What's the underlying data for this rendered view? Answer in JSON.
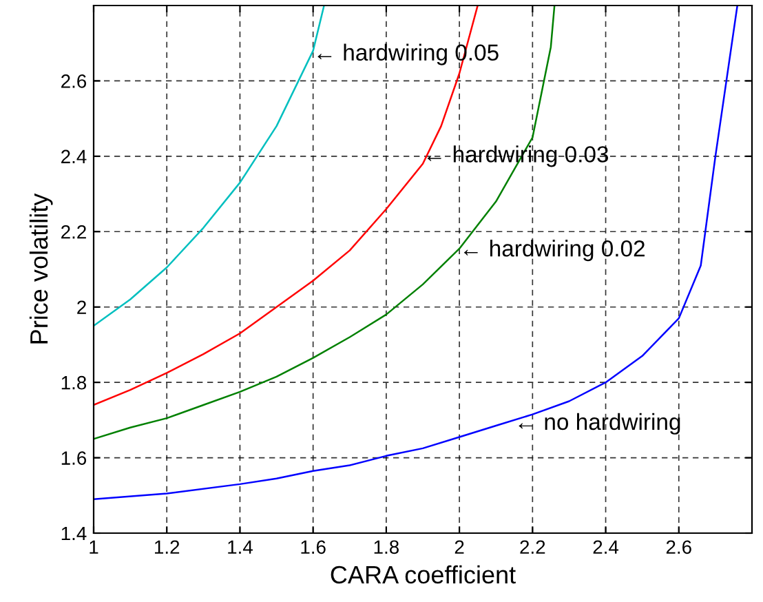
{
  "chart_data": {
    "type": "line",
    "xlabel": "CARA coefficient",
    "ylabel": "Price volatility",
    "xlim": [
      1,
      2.8
    ],
    "ylim": [
      1.4,
      2.8
    ],
    "xticks": [
      1,
      1.2,
      1.4,
      1.6,
      1.8,
      2,
      2.2,
      2.4,
      2.6
    ],
    "yticks": [
      1.4,
      1.6,
      1.8,
      2,
      2.2,
      2.4,
      2.6
    ],
    "grid": true,
    "line_style": "solid",
    "marker": "none",
    "series": [
      {
        "color": "#00bfbf",
        "x": [
          1,
          1.1,
          1.2,
          1.3,
          1.4,
          1.5,
          1.6,
          1.63
        ],
        "values": [
          1.95,
          2.02,
          2.105,
          2.21,
          2.33,
          2.48,
          2.68,
          2.8
        ]
      },
      {
        "color": "#ff0000",
        "x": [
          1,
          1.1,
          1.2,
          1.3,
          1.4,
          1.5,
          1.6,
          1.7,
          1.8,
          1.9,
          1.95,
          2.0,
          2.05
        ],
        "values": [
          1.74,
          1.78,
          1.825,
          1.875,
          1.93,
          2.0,
          2.07,
          2.15,
          2.26,
          2.38,
          2.48,
          2.62,
          2.8
        ]
      },
      {
        "color": "#008000",
        "x": [
          1,
          1.1,
          1.2,
          1.3,
          1.4,
          1.5,
          1.6,
          1.7,
          1.8,
          1.9,
          2.0,
          2.1,
          2.2,
          2.25,
          2.26
        ],
        "values": [
          1.65,
          1.68,
          1.705,
          1.74,
          1.775,
          1.815,
          1.865,
          1.92,
          1.98,
          2.06,
          2.155,
          2.28,
          2.45,
          2.69,
          2.8
        ]
      },
      {
        "color": "#0000ff",
        "x": [
          1,
          1.2,
          1.4,
          1.5,
          1.6,
          1.7,
          1.8,
          1.9,
          2.0,
          2.1,
          2.2,
          2.3,
          2.4,
          2.5,
          2.6,
          2.66,
          2.7,
          2.76
        ],
        "values": [
          1.49,
          1.505,
          1.53,
          1.545,
          1.565,
          1.58,
          1.605,
          1.625,
          1.655,
          1.685,
          1.715,
          1.75,
          1.8,
          1.87,
          1.97,
          2.11,
          2.4,
          2.8
        ]
      }
    ],
    "annotations": [
      {
        "text": "← hardwiring 0.05",
        "x": 1.6,
        "y": 2.67
      },
      {
        "text": "← hardwiring 0.03",
        "x": 1.9,
        "y": 2.4
      },
      {
        "text": "← hardwiring 0.02",
        "x": 2.0,
        "y": 2.15
      },
      {
        "text": "← no hardwiring",
        "x": 2.15,
        "y": 1.69
      }
    ]
  }
}
